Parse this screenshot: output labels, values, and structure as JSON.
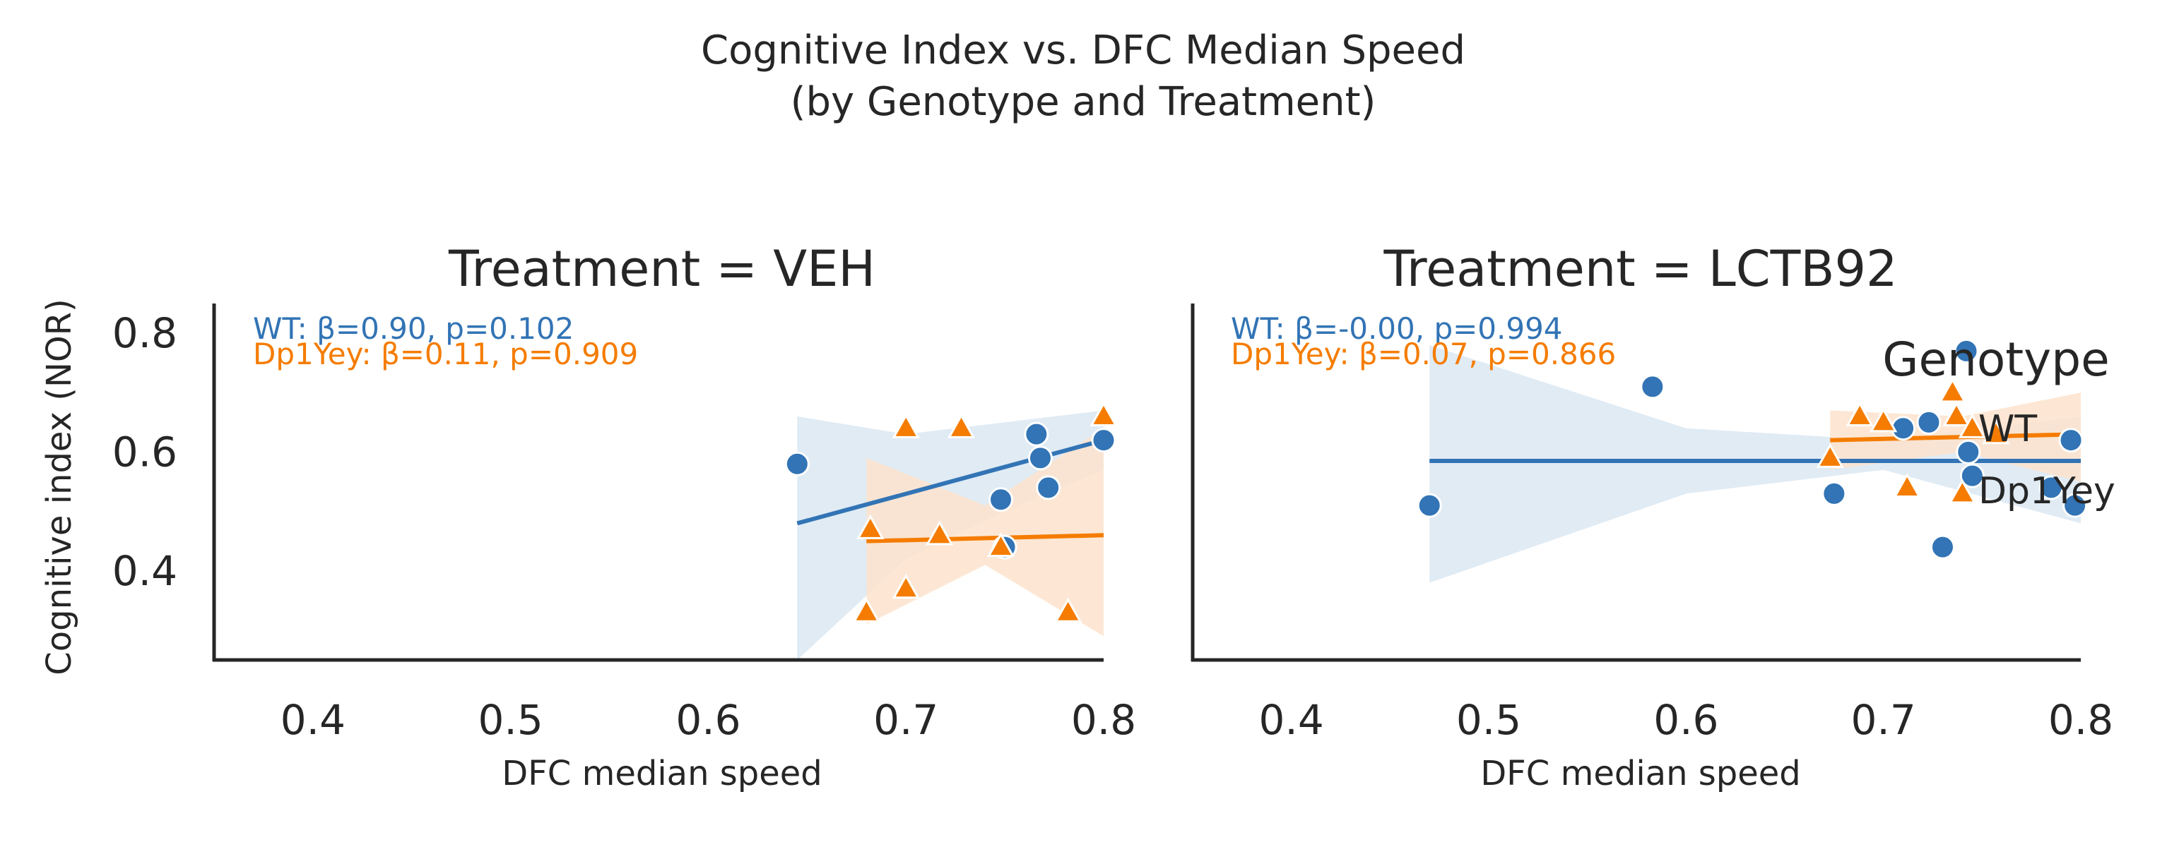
{
  "figure": {
    "title_line1": "Cognitive Index vs. DFC Median Speed",
    "title_line2": "(by Genotype and Treatment)"
  },
  "legend": {
    "title": "Genotype",
    "entries": [
      {
        "label": "WT",
        "color": "#3274b5",
        "marker": "circle"
      },
      {
        "label": "Dp1Yey",
        "color": "#f57c00",
        "marker": "triangle"
      }
    ],
    "placement": "right"
  },
  "colors": {
    "WT": "#3274b5",
    "Dp1Yey": "#f57c00",
    "WT_band": "#dbe7f2",
    "Dp1Yey_band": "#fde3cd",
    "axis": "#262626"
  },
  "chart_data": [
    {
      "type": "scatter",
      "title": "Treatment = VEH",
      "xlabel": "DFC median speed",
      "ylabel": "Cognitive index (NOR)",
      "xlim": [
        0.35,
        0.8
      ],
      "ylim": [
        0.25,
        0.85
      ],
      "xticks": [
        "0.4",
        "0.5",
        "0.6",
        "0.7",
        "0.8"
      ],
      "yticks": [
        "0.4",
        "0.6",
        "0.8"
      ],
      "grid": false,
      "annotations": [
        "WT: β=0.90, p=0.102",
        "Dp1Yey: β=0.11, p=0.909"
      ],
      "series": [
        {
          "name": "WT",
          "marker": "circle",
          "x": [
            0.645,
            0.748,
            0.75,
            0.766,
            0.768,
            0.772,
            0.8
          ],
          "y": [
            0.58,
            0.52,
            0.44,
            0.63,
            0.59,
            0.54,
            0.62
          ],
          "fit": {
            "x": [
              0.645,
              0.8
            ],
            "y": [
              0.48,
              0.62
            ]
          },
          "ci": {
            "x": [
              0.645,
              0.7,
              0.75,
              0.8
            ],
            "lo": [
              0.25,
              0.42,
              0.5,
              0.57
            ],
            "hi": [
              0.66,
              0.63,
              0.65,
              0.67
            ]
          }
        },
        {
          "name": "Dp1Yey",
          "marker": "triangle",
          "x": [
            0.68,
            0.682,
            0.7,
            0.7,
            0.717,
            0.728,
            0.748,
            0.782,
            0.8
          ],
          "y": [
            0.33,
            0.47,
            0.37,
            0.64,
            0.46,
            0.64,
            0.44,
            0.33,
            0.66
          ],
          "fit": {
            "x": [
              0.68,
              0.8
            ],
            "y": [
              0.45,
              0.46
            ]
          },
          "ci": {
            "x": [
              0.68,
              0.74,
              0.8
            ],
            "lo": [
              0.31,
              0.41,
              0.29
            ],
            "hi": [
              0.59,
              0.51,
              0.64
            ]
          }
        }
      ]
    },
    {
      "type": "scatter",
      "title": "Treatment = LCTB92",
      "xlabel": "DFC median speed",
      "ylabel": "",
      "xlim": [
        0.35,
        0.8
      ],
      "ylim": [
        0.25,
        0.85
      ],
      "xticks": [
        "0.4",
        "0.5",
        "0.6",
        "0.7",
        "0.8"
      ],
      "yticks": [],
      "grid": false,
      "annotations": [
        "WT: β=-0.00, p=0.994",
        "Dp1Yey: β=0.07, p=0.866"
      ],
      "series": [
        {
          "name": "WT",
          "marker": "circle",
          "x": [
            0.47,
            0.583,
            0.675,
            0.71,
            0.723,
            0.73,
            0.742,
            0.743,
            0.745,
            0.785,
            0.795,
            0.797
          ],
          "y": [
            0.51,
            0.71,
            0.53,
            0.64,
            0.65,
            0.44,
            0.77,
            0.6,
            0.56,
            0.54,
            0.62,
            0.51
          ],
          "fit": {
            "x": [
              0.47,
              0.8
            ],
            "y": [
              0.585,
              0.585
            ]
          },
          "ci": {
            "x": [
              0.47,
              0.6,
              0.7,
              0.8
            ],
            "lo": [
              0.38,
              0.53,
              0.57,
              0.48
            ],
            "hi": [
              0.78,
              0.64,
              0.62,
              0.66
            ]
          }
        },
        {
          "name": "Dp1Yey",
          "marker": "triangle",
          "x": [
            0.673,
            0.688,
            0.7,
            0.712,
            0.735,
            0.737,
            0.74,
            0.745,
            0.757
          ],
          "y": [
            0.59,
            0.66,
            0.65,
            0.54,
            0.7,
            0.66,
            0.53,
            0.64,
            0.63
          ],
          "fit": {
            "x": [
              0.673,
              0.8
            ],
            "y": [
              0.62,
              0.63
            ]
          },
          "ci": {
            "x": [
              0.673,
              0.74,
              0.8
            ],
            "lo": [
              0.57,
              0.6,
              0.55
            ],
            "hi": [
              0.67,
              0.66,
              0.7
            ]
          }
        }
      ]
    }
  ]
}
